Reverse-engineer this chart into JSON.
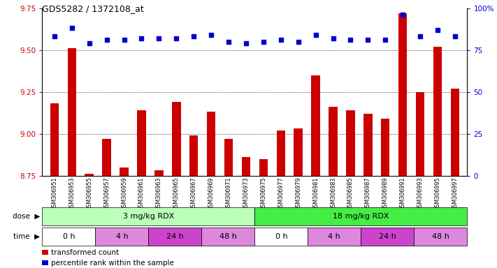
{
  "title": "GDS5282 / 1372108_at",
  "samples": [
    "GSM306951",
    "GSM306953",
    "GSM306955",
    "GSM306957",
    "GSM306959",
    "GSM306961",
    "GSM306963",
    "GSM306965",
    "GSM306967",
    "GSM306969",
    "GSM306971",
    "GSM306973",
    "GSM306975",
    "GSM306977",
    "GSM306979",
    "GSM306981",
    "GSM306983",
    "GSM306985",
    "GSM306987",
    "GSM306989",
    "GSM306991",
    "GSM306993",
    "GSM306995",
    "GSM306997"
  ],
  "bar_values": [
    9.18,
    9.51,
    8.76,
    8.97,
    8.8,
    9.14,
    8.78,
    9.19,
    8.99,
    9.13,
    8.97,
    8.86,
    8.85,
    9.02,
    9.03,
    9.35,
    9.16,
    9.14,
    9.12,
    9.09,
    9.72,
    9.25,
    9.52,
    9.27
  ],
  "dot_values": [
    83,
    88,
    79,
    81,
    81,
    82,
    82,
    82,
    83,
    84,
    80,
    79,
    80,
    81,
    80,
    84,
    82,
    81,
    81,
    81,
    96,
    83,
    87,
    83
  ],
  "bar_color": "#cc0000",
  "dot_color": "#0000cc",
  "ylim_left": [
    8.75,
    9.75
  ],
  "ylim_right": [
    0,
    100
  ],
  "yticks_left": [
    8.75,
    9.0,
    9.25,
    9.5,
    9.75
  ],
  "yticks_right": [
    0,
    25,
    50,
    75,
    100
  ],
  "grid_lines": [
    9.0,
    9.25,
    9.5
  ],
  "plot_bg_color": "#ffffff",
  "dose_groups": [
    {
      "label": "3 mg/kg RDX",
      "start": 0,
      "end": 12,
      "color": "#bbffbb"
    },
    {
      "label": "18 mg/kg RDX",
      "start": 12,
      "end": 24,
      "color": "#44ee44"
    }
  ],
  "time_groups": [
    {
      "label": "0 h",
      "start": 0,
      "end": 3,
      "color": "#ffffff"
    },
    {
      "label": "4 h",
      "start": 3,
      "end": 6,
      "color": "#dd88dd"
    },
    {
      "label": "24 h",
      "start": 6,
      "end": 9,
      "color": "#cc44cc"
    },
    {
      "label": "48 h",
      "start": 9,
      "end": 12,
      "color": "#dd88dd"
    },
    {
      "label": "0 h",
      "start": 12,
      "end": 15,
      "color": "#ffffff"
    },
    {
      "label": "4 h",
      "start": 15,
      "end": 18,
      "color": "#dd88dd"
    },
    {
      "label": "24 h",
      "start": 18,
      "end": 21,
      "color": "#cc44cc"
    },
    {
      "label": "48 h",
      "start": 21,
      "end": 24,
      "color": "#dd88dd"
    }
  ],
  "legend_items": [
    {
      "label": "transformed count",
      "color": "#cc0000"
    },
    {
      "label": "percentile rank within the sample",
      "color": "#0000cc"
    }
  ],
  "sample_band_color": "#d8d8d8"
}
